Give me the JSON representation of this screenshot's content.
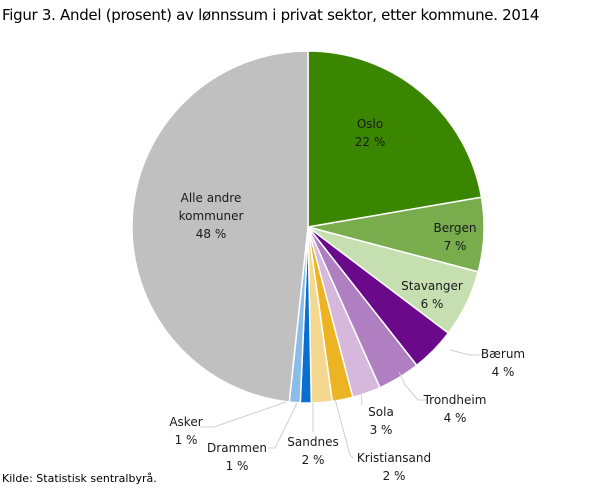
{
  "chart_data": {
    "type": "pie",
    "title": "Figur 3. Andel (prosent) av lønnssum i privat sektor, etter kommune. 2014",
    "source": "Kilde: Statistisk sentralbyrå.",
    "start": "top, clockwise",
    "slices": [
      {
        "name": "Oslo",
        "value": 22.3,
        "label": "22 %",
        "color": "#3a8600"
      },
      {
        "name": "Bergen",
        "value": 6.8,
        "label": "7 %",
        "color": "#78ac4c"
      },
      {
        "name": "Stavanger",
        "value": 6.2,
        "label": "6 %",
        "color": "#c5dfb0"
      },
      {
        "name": "Bærum",
        "value": 4.1,
        "label": "4 %",
        "color": "#6a0a8a"
      },
      {
        "name": "Trondheim",
        "value": 3.9,
        "label": "4 %",
        "color": "#b07fc2"
      },
      {
        "name": "Sola",
        "value": 2.6,
        "label": "3 %",
        "color": "#d6b8dd"
      },
      {
        "name": "Kristiansand",
        "value": 1.9,
        "label": "2 %",
        "color": "#ecb322"
      },
      {
        "name": "Sandnes",
        "value": 1.9,
        "label": "2 %",
        "color": "#f4d88f"
      },
      {
        "name": "Drammen",
        "value": 1.0,
        "label": "1 %",
        "color": "#0a6fcf"
      },
      {
        "name": "Asker",
        "value": 1.0,
        "label": "1 %",
        "color": "#8bbde9"
      },
      {
        "name": "Alle andre kommuner",
        "value": 48.3,
        "label": "48 %",
        "color": "#c0c0c0"
      }
    ]
  }
}
